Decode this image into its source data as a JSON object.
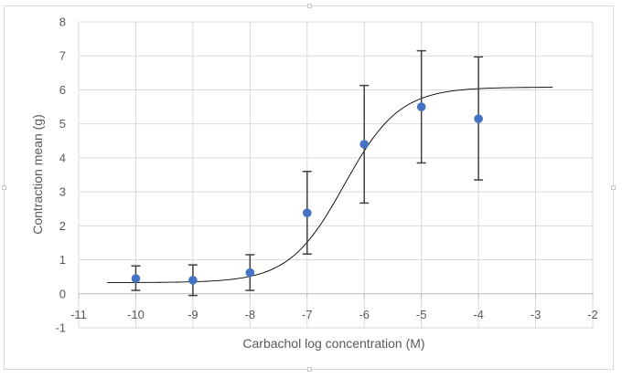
{
  "chart_data": {
    "type": "scatter",
    "title": "",
    "xlabel": "Carbachol log concentration (M)",
    "ylabel": "Contraction mean (g)",
    "xlim": [
      -11,
      -2
    ],
    "ylim": [
      -1,
      8
    ],
    "x_ticks": [
      -11,
      -10,
      -9,
      -8,
      -7,
      -6,
      -5,
      -4,
      -3,
      -2
    ],
    "y_ticks": [
      -1,
      0,
      1,
      2,
      3,
      4,
      5,
      6,
      7,
      8
    ],
    "grid": true,
    "legend": "none",
    "points": {
      "x": [
        -10,
        -9,
        -8,
        -7,
        -6,
        -5,
        -4
      ],
      "y": [
        0.45,
        0.4,
        0.62,
        2.38,
        4.4,
        5.5,
        5.15
      ],
      "error_low": [
        0.1,
        -0.05,
        0.1,
        1.17,
        2.67,
        3.85,
        3.35
      ],
      "error_high": [
        0.82,
        0.85,
        1.15,
        3.6,
        6.13,
        7.15,
        6.97
      ],
      "color": "#4472c4"
    },
    "fit_curve": {
      "type": "sigmoid",
      "x_range": [
        -10.5,
        -2.7
      ],
      "bottom": 0.33,
      "top": 6.08,
      "log_ec50": -6.35,
      "hill_slope": 0.9,
      "color": "#000000"
    },
    "colors": {
      "grid": "#d9d9d9",
      "error_bar": "#404040",
      "text": "#595959"
    }
  }
}
